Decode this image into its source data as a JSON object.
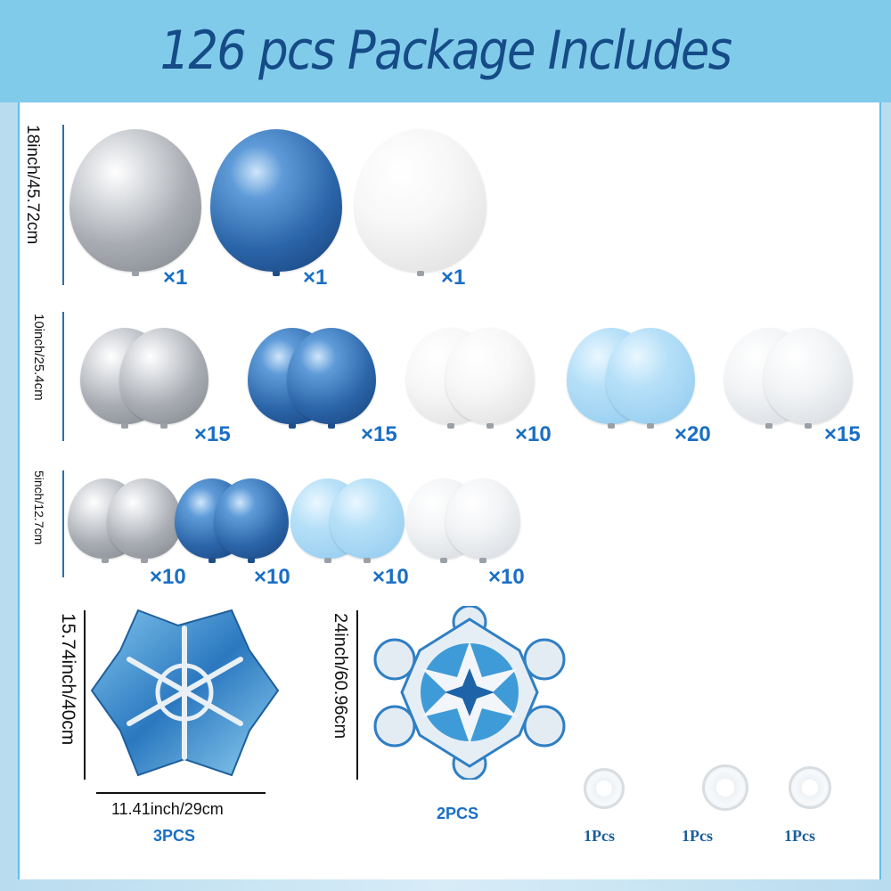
{
  "title": "126 pcs Package Includes",
  "colors": {
    "silver": "#b8bcc2",
    "blue": "#2f6fb3",
    "white": "#f3f3f3",
    "light_blue": "#a8d8f5",
    "pearl": "#eceff2",
    "accent": "#1a6fc4",
    "title": "#154b86"
  },
  "rows": [
    {
      "size_label": "18inch/45.72cm",
      "items": [
        {
          "color": "silver",
          "count": "×1"
        },
        {
          "color": "blue",
          "count": "×1"
        },
        {
          "color": "white",
          "count": "×1"
        }
      ]
    },
    {
      "size_label": "10inch/25.4cm",
      "items": [
        {
          "color": "silver",
          "count": "×15"
        },
        {
          "color": "blue",
          "count": "×15"
        },
        {
          "color": "white",
          "count": "×10"
        },
        {
          "color": "light_blue",
          "count": "×20"
        },
        {
          "color": "pearl",
          "count": "×15"
        }
      ]
    },
    {
      "size_label": "5inch/12.7cm",
      "items": [
        {
          "color": "silver",
          "count": "×10"
        },
        {
          "color": "blue",
          "count": "×10"
        },
        {
          "color": "light_blue",
          "count": "×10"
        },
        {
          "color": "pearl",
          "count": "×10"
        }
      ]
    }
  ],
  "foils": [
    {
      "name": "snowflake-star-foil",
      "height_label": "15.74inch/40cm",
      "width_label": "11.41inch/29cm",
      "qty": "3PCS"
    },
    {
      "name": "snowflake-flower-foil",
      "height_label": "24inch/60.96cm",
      "qty": "2PCS"
    }
  ],
  "accessories": [
    {
      "name": "ribbon-roll",
      "qty": "1Pcs"
    },
    {
      "name": "balloon-arch-strip",
      "qty": "1Pcs"
    },
    {
      "name": "glue-dots",
      "qty": "1Pcs"
    }
  ]
}
